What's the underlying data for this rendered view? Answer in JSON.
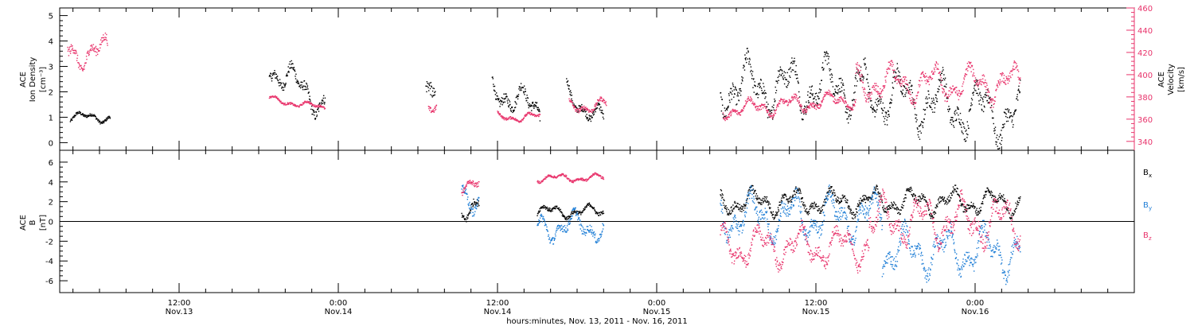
{
  "chart_data": [
    {
      "type": "scatter",
      "panel": "top",
      "left_axis_label": [
        "ACE",
        "Ion Density",
        "[cm⁻³]"
      ],
      "right_axis_label": [
        "ACE",
        "Velocity",
        "[km/s]"
      ],
      "ylim": [
        -0.3,
        5.3
      ],
      "y_ticks": [
        "0",
        "1",
        "2",
        "3",
        "4",
        "5"
      ],
      "y_tick_values": [
        0,
        1,
        2,
        3,
        4,
        5
      ],
      "y2lim": [
        332,
        460
      ],
      "y2_ticks": [
        "340",
        "360",
        "380",
        "400",
        "420",
        "440",
        "460"
      ],
      "y2_tick_values": [
        340,
        360,
        380,
        400,
        420,
        440,
        460
      ],
      "xlim_hours": [
        0,
        81
      ],
      "series": [
        {
          "role": "density",
          "axis": "left",
          "color": "#000000",
          "segments": [
            {
              "t": [
                0.8,
                3.8
              ],
              "base": 1.0,
              "amp": 0.25
            },
            {
              "t": [
                15.8,
                20.0
              ],
              "base": 3.0,
              "amp": 0.8,
              "trend": -1.5
            },
            {
              "t": [
                27.6,
                28.3
              ],
              "base": 2.5,
              "amp": 1.2
            },
            {
              "t": [
                32.6,
                36.2
              ],
              "base": 2.2,
              "amp": 0.8,
              "trend": -1.0
            },
            {
              "t": [
                38.2,
                41.0
              ],
              "base": 2.0,
              "amp": 0.6,
              "trend": -1.2
            },
            {
              "t": [
                49.8,
                60.6
              ],
              "base": 2.2,
              "amp": 1.4
            },
            {
              "t": [
                60.6,
                72.4
              ],
              "base": 2.0,
              "amp": 1.4,
              "trend": -1.0
            }
          ]
        },
        {
          "role": "velocity",
          "axis": "right",
          "color": "#e8336b",
          "segments": [
            {
              "t": [
                0.6,
                3.6
              ],
              "base": 420,
              "amp": 18
            },
            {
              "t": [
                15.8,
                20.0
              ],
              "base": 378,
              "amp": 4,
              "trend": -8
            },
            {
              "t": [
                27.8,
                28.4
              ],
              "base": 372,
              "amp": 10
            },
            {
              "t": [
                33.0,
                36.2
              ],
              "base": 362,
              "amp": 5
            },
            {
              "t": [
                38.4,
                41.2
              ],
              "base": 372,
              "amp": 8
            },
            {
              "t": [
                50.0,
                60.0
              ],
              "base": 368,
              "amp": 10,
              "trend": 10
            },
            {
              "t": [
                60.0,
                72.4
              ],
              "base": 392,
              "amp": 20
            }
          ]
        }
      ]
    },
    {
      "type": "scatter",
      "panel": "bottom",
      "left_axis_label": [
        "ACE",
        "B",
        "[nT]"
      ],
      "ylim": [
        -7.2,
        7.2
      ],
      "y_ticks": [
        "-6",
        "-4",
        "-2",
        "0",
        "2",
        "4",
        "6"
      ],
      "y_tick_values": [
        -6,
        -4,
        -2,
        0,
        2,
        4,
        6
      ],
      "zero_line": true,
      "xlim_hours": [
        0,
        81
      ],
      "series": [
        {
          "name": "Bx",
          "color": "#000000",
          "segments": [
            {
              "t": [
                30.3,
                31.6
              ],
              "base": 1.5,
              "amp": 1.5
            },
            {
              "t": [
                36.0,
                41.0
              ],
              "base": 1.0,
              "amp": 0.8
            },
            {
              "t": [
                49.8,
                72.4
              ],
              "base": 2.0,
              "amp": 1.6
            }
          ]
        },
        {
          "name": "By",
          "color": "#1f7ed6",
          "segments": [
            {
              "t": [
                30.3,
                31.6
              ],
              "base": 2.5,
              "amp": 1.8
            },
            {
              "t": [
                36.0,
                41.0
              ],
              "base": -0.5,
              "amp": 1.8
            },
            {
              "t": [
                49.8,
                62.0
              ],
              "base": 0.5,
              "amp": 3.0
            },
            {
              "t": [
                62.0,
                72.4
              ],
              "base": -3.0,
              "amp": 3.0
            }
          ]
        },
        {
          "name": "Bz",
          "color": "#e8336b",
          "segments": [
            {
              "t": [
                30.3,
                31.6
              ],
              "base": 3.5,
              "amp": 1.0
            },
            {
              "t": [
                36.0,
                41.0
              ],
              "base": 4.4,
              "amp": 0.5
            },
            {
              "t": [
                49.8,
                61.0
              ],
              "base": -2.5,
              "amp": 2.5
            },
            {
              "t": [
                61.0,
                72.4
              ],
              "base": 0.0,
              "amp": 3.0
            }
          ]
        }
      ]
    }
  ],
  "x_axis": {
    "xlim_hours": [
      0,
      81
    ],
    "major_ticks": [
      {
        "t": 9,
        "time": "12:00",
        "day": "Nov.13"
      },
      {
        "t": 21,
        "time": "0:00",
        "day": "Nov.14"
      },
      {
        "t": 33,
        "time": "12:00",
        "day": "Nov.14"
      },
      {
        "t": 45,
        "time": "0:00",
        "day": "Nov.15"
      },
      {
        "t": 57,
        "time": "12:00",
        "day": "Nov.15"
      },
      {
        "t": 69,
        "time": "0:00",
        "day": "Nov.16"
      }
    ],
    "xlabel": "hours:minutes, Nov. 13, 2011 - Nov. 16, 2011"
  },
  "legend": [
    {
      "label": "B",
      "sub": "x",
      "color": "#000000"
    },
    {
      "label": "B",
      "sub": "y",
      "color": "#1f7ed6"
    },
    {
      "label": "B",
      "sub": "z",
      "color": "#e8336b"
    }
  ]
}
